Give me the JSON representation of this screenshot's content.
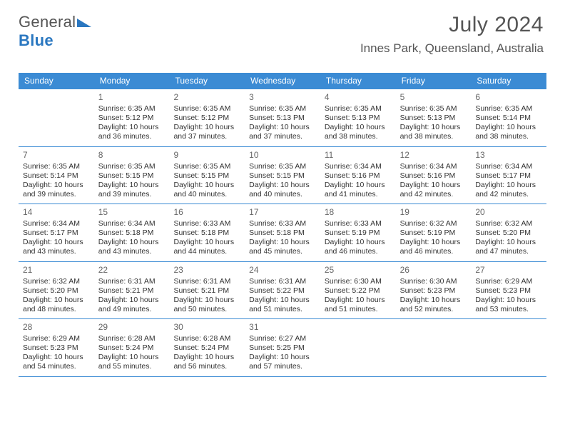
{
  "brand": {
    "part1": "General",
    "part2": "Blue"
  },
  "title": "July 2024",
  "location": "Innes Park, Queensland, Australia",
  "header_bg": "#3b8bd4",
  "rule_color": "#3b8bd4",
  "text_color": "#333333",
  "title_color": "#555555",
  "days_of_week": [
    "Sunday",
    "Monday",
    "Tuesday",
    "Wednesday",
    "Thursday",
    "Friday",
    "Saturday"
  ],
  "weeks": [
    [
      null,
      {
        "n": "1",
        "sr": "Sunrise: 6:35 AM",
        "ss": "Sunset: 5:12 PM",
        "dl": "Daylight: 10 hours and 36 minutes."
      },
      {
        "n": "2",
        "sr": "Sunrise: 6:35 AM",
        "ss": "Sunset: 5:12 PM",
        "dl": "Daylight: 10 hours and 37 minutes."
      },
      {
        "n": "3",
        "sr": "Sunrise: 6:35 AM",
        "ss": "Sunset: 5:13 PM",
        "dl": "Daylight: 10 hours and 37 minutes."
      },
      {
        "n": "4",
        "sr": "Sunrise: 6:35 AM",
        "ss": "Sunset: 5:13 PM",
        "dl": "Daylight: 10 hours and 38 minutes."
      },
      {
        "n": "5",
        "sr": "Sunrise: 6:35 AM",
        "ss": "Sunset: 5:13 PM",
        "dl": "Daylight: 10 hours and 38 minutes."
      },
      {
        "n": "6",
        "sr": "Sunrise: 6:35 AM",
        "ss": "Sunset: 5:14 PM",
        "dl": "Daylight: 10 hours and 38 minutes."
      }
    ],
    [
      {
        "n": "7",
        "sr": "Sunrise: 6:35 AM",
        "ss": "Sunset: 5:14 PM",
        "dl": "Daylight: 10 hours and 39 minutes."
      },
      {
        "n": "8",
        "sr": "Sunrise: 6:35 AM",
        "ss": "Sunset: 5:15 PM",
        "dl": "Daylight: 10 hours and 39 minutes."
      },
      {
        "n": "9",
        "sr": "Sunrise: 6:35 AM",
        "ss": "Sunset: 5:15 PM",
        "dl": "Daylight: 10 hours and 40 minutes."
      },
      {
        "n": "10",
        "sr": "Sunrise: 6:35 AM",
        "ss": "Sunset: 5:15 PM",
        "dl": "Daylight: 10 hours and 40 minutes."
      },
      {
        "n": "11",
        "sr": "Sunrise: 6:34 AM",
        "ss": "Sunset: 5:16 PM",
        "dl": "Daylight: 10 hours and 41 minutes."
      },
      {
        "n": "12",
        "sr": "Sunrise: 6:34 AM",
        "ss": "Sunset: 5:16 PM",
        "dl": "Daylight: 10 hours and 42 minutes."
      },
      {
        "n": "13",
        "sr": "Sunrise: 6:34 AM",
        "ss": "Sunset: 5:17 PM",
        "dl": "Daylight: 10 hours and 42 minutes."
      }
    ],
    [
      {
        "n": "14",
        "sr": "Sunrise: 6:34 AM",
        "ss": "Sunset: 5:17 PM",
        "dl": "Daylight: 10 hours and 43 minutes."
      },
      {
        "n": "15",
        "sr": "Sunrise: 6:34 AM",
        "ss": "Sunset: 5:18 PM",
        "dl": "Daylight: 10 hours and 43 minutes."
      },
      {
        "n": "16",
        "sr": "Sunrise: 6:33 AM",
        "ss": "Sunset: 5:18 PM",
        "dl": "Daylight: 10 hours and 44 minutes."
      },
      {
        "n": "17",
        "sr": "Sunrise: 6:33 AM",
        "ss": "Sunset: 5:18 PM",
        "dl": "Daylight: 10 hours and 45 minutes."
      },
      {
        "n": "18",
        "sr": "Sunrise: 6:33 AM",
        "ss": "Sunset: 5:19 PM",
        "dl": "Daylight: 10 hours and 46 minutes."
      },
      {
        "n": "19",
        "sr": "Sunrise: 6:32 AM",
        "ss": "Sunset: 5:19 PM",
        "dl": "Daylight: 10 hours and 46 minutes."
      },
      {
        "n": "20",
        "sr": "Sunrise: 6:32 AM",
        "ss": "Sunset: 5:20 PM",
        "dl": "Daylight: 10 hours and 47 minutes."
      }
    ],
    [
      {
        "n": "21",
        "sr": "Sunrise: 6:32 AM",
        "ss": "Sunset: 5:20 PM",
        "dl": "Daylight: 10 hours and 48 minutes."
      },
      {
        "n": "22",
        "sr": "Sunrise: 6:31 AM",
        "ss": "Sunset: 5:21 PM",
        "dl": "Daylight: 10 hours and 49 minutes."
      },
      {
        "n": "23",
        "sr": "Sunrise: 6:31 AM",
        "ss": "Sunset: 5:21 PM",
        "dl": "Daylight: 10 hours and 50 minutes."
      },
      {
        "n": "24",
        "sr": "Sunrise: 6:31 AM",
        "ss": "Sunset: 5:22 PM",
        "dl": "Daylight: 10 hours and 51 minutes."
      },
      {
        "n": "25",
        "sr": "Sunrise: 6:30 AM",
        "ss": "Sunset: 5:22 PM",
        "dl": "Daylight: 10 hours and 51 minutes."
      },
      {
        "n": "26",
        "sr": "Sunrise: 6:30 AM",
        "ss": "Sunset: 5:23 PM",
        "dl": "Daylight: 10 hours and 52 minutes."
      },
      {
        "n": "27",
        "sr": "Sunrise: 6:29 AM",
        "ss": "Sunset: 5:23 PM",
        "dl": "Daylight: 10 hours and 53 minutes."
      }
    ],
    [
      {
        "n": "28",
        "sr": "Sunrise: 6:29 AM",
        "ss": "Sunset: 5:23 PM",
        "dl": "Daylight: 10 hours and 54 minutes."
      },
      {
        "n": "29",
        "sr": "Sunrise: 6:28 AM",
        "ss": "Sunset: 5:24 PM",
        "dl": "Daylight: 10 hours and 55 minutes."
      },
      {
        "n": "30",
        "sr": "Sunrise: 6:28 AM",
        "ss": "Sunset: 5:24 PM",
        "dl": "Daylight: 10 hours and 56 minutes."
      },
      {
        "n": "31",
        "sr": "Sunrise: 6:27 AM",
        "ss": "Sunset: 5:25 PM",
        "dl": "Daylight: 10 hours and 57 minutes."
      },
      null,
      null,
      null
    ]
  ]
}
